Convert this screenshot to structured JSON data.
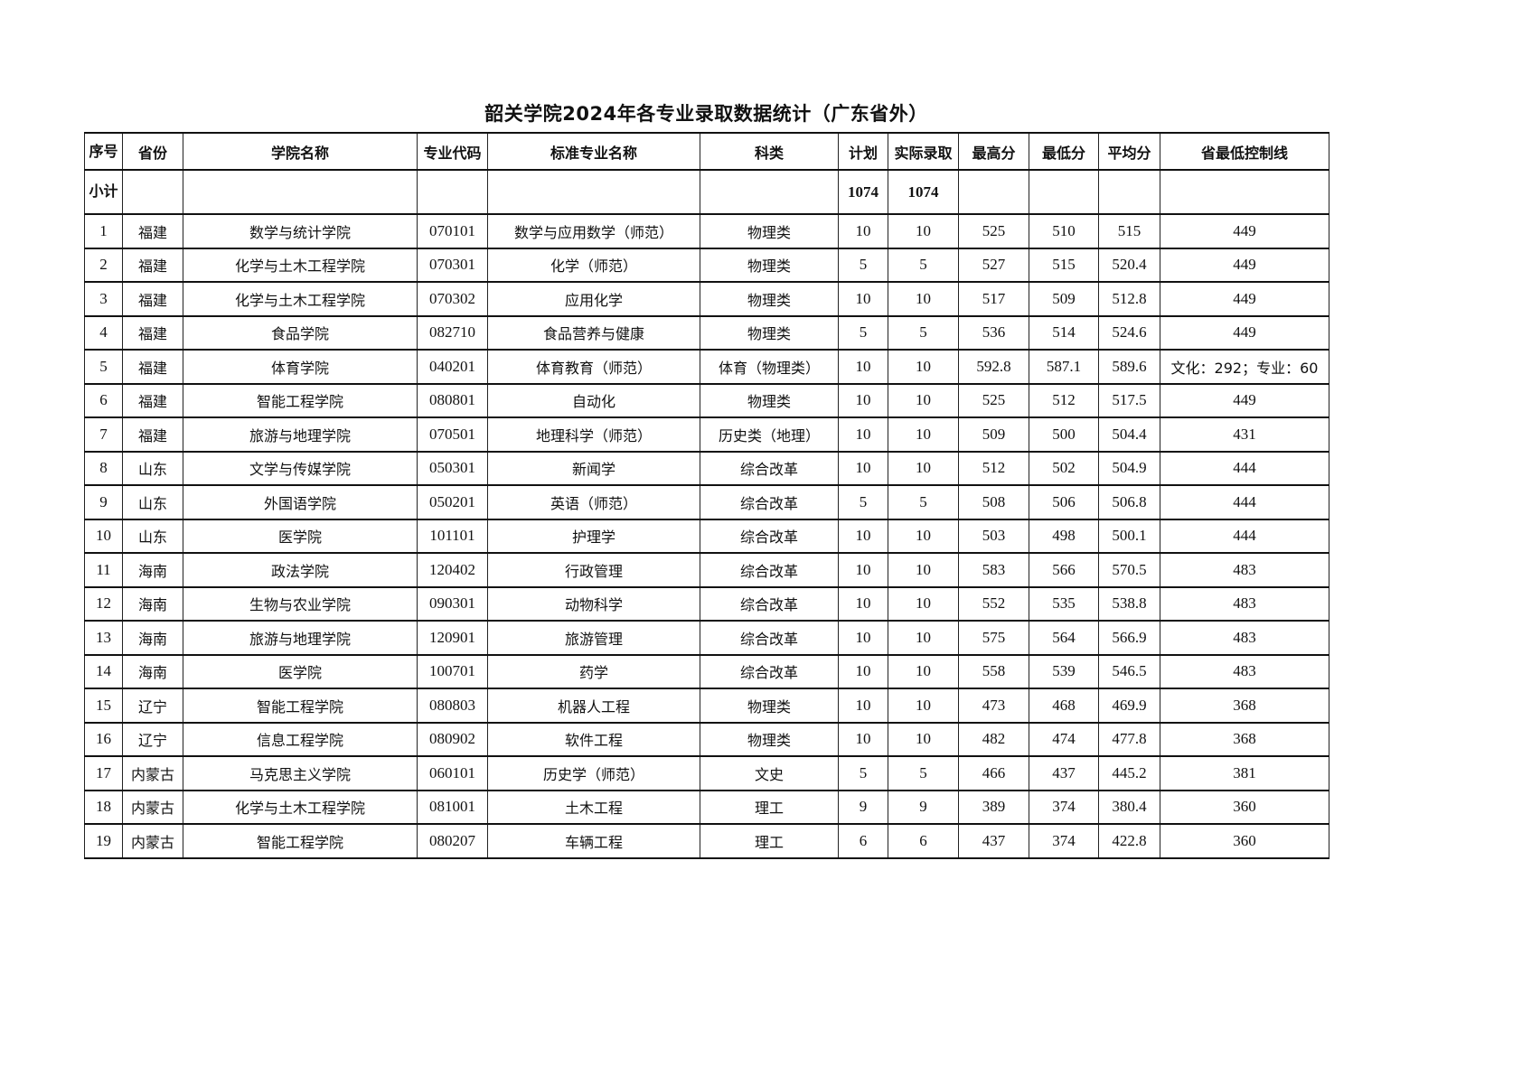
{
  "title": "韶关学院2024年各专业录取数据统计（广东省外）",
  "headers": [
    "序号",
    "省份",
    "学院名称",
    "专业代码",
    "标准专业名称",
    "科类",
    "计划",
    "实际录取",
    "最高分",
    "最低分",
    "平均分",
    "省最低控制线"
  ],
  "subtotal": {
    "label": "小计",
    "plan": "1074",
    "admitted": "1074"
  },
  "rows": [
    [
      "1",
      "福建",
      "数学与统计学院",
      "070101",
      "数学与应用数学（师范）",
      "物理类",
      "10",
      "10",
      "525",
      "510",
      "515",
      "449"
    ],
    [
      "2",
      "福建",
      "化学与土木工程学院",
      "070301",
      "化学（师范）",
      "物理类",
      "5",
      "5",
      "527",
      "515",
      "520.4",
      "449"
    ],
    [
      "3",
      "福建",
      "化学与土木工程学院",
      "070302",
      "应用化学",
      "物理类",
      "10",
      "10",
      "517",
      "509",
      "512.8",
      "449"
    ],
    [
      "4",
      "福建",
      "食品学院",
      "082710",
      "食品营养与健康",
      "物理类",
      "5",
      "5",
      "536",
      "514",
      "524.6",
      "449"
    ],
    [
      "5",
      "福建",
      "体育学院",
      "040201",
      "体育教育（师范）",
      "体育（物理类）",
      "10",
      "10",
      "592.8",
      "587.1",
      "589.6",
      "文化：292；专业：60"
    ],
    [
      "6",
      "福建",
      "智能工程学院",
      "080801",
      "自动化",
      "物理类",
      "10",
      "10",
      "525",
      "512",
      "517.5",
      "449"
    ],
    [
      "7",
      "福建",
      "旅游与地理学院",
      "070501",
      "地理科学（师范）",
      "历史类（地理）",
      "10",
      "10",
      "509",
      "500",
      "504.4",
      "431"
    ],
    [
      "8",
      "山东",
      "文学与传媒学院",
      "050301",
      "新闻学",
      "综合改革",
      "10",
      "10",
      "512",
      "502",
      "504.9",
      "444"
    ],
    [
      "9",
      "山东",
      "外国语学院",
      "050201",
      "英语（师范）",
      "综合改革",
      "5",
      "5",
      "508",
      "506",
      "506.8",
      "444"
    ],
    [
      "10",
      "山东",
      "医学院",
      "101101",
      "护理学",
      "综合改革",
      "10",
      "10",
      "503",
      "498",
      "500.1",
      "444"
    ],
    [
      "11",
      "海南",
      "政法学院",
      "120402",
      "行政管理",
      "综合改革",
      "10",
      "10",
      "583",
      "566",
      "570.5",
      "483"
    ],
    [
      "12",
      "海南",
      "生物与农业学院",
      "090301",
      "动物科学",
      "综合改革",
      "10",
      "10",
      "552",
      "535",
      "538.8",
      "483"
    ],
    [
      "13",
      "海南",
      "旅游与地理学院",
      "120901",
      "旅游管理",
      "综合改革",
      "10",
      "10",
      "575",
      "564",
      "566.9",
      "483"
    ],
    [
      "14",
      "海南",
      "医学院",
      "100701",
      "药学",
      "综合改革",
      "10",
      "10",
      "558",
      "539",
      "546.5",
      "483"
    ],
    [
      "15",
      "辽宁",
      "智能工程学院",
      "080803",
      "机器人工程",
      "物理类",
      "10",
      "10",
      "473",
      "468",
      "469.9",
      "368"
    ],
    [
      "16",
      "辽宁",
      "信息工程学院",
      "080902",
      "软件工程",
      "物理类",
      "10",
      "10",
      "482",
      "474",
      "477.8",
      "368"
    ],
    [
      "17",
      "内蒙古",
      "马克思主义学院",
      "060101",
      "历史学（师范）",
      "文史",
      "5",
      "5",
      "466",
      "437",
      "445.2",
      "381"
    ],
    [
      "18",
      "内蒙古",
      "化学与土木工程学院",
      "081001",
      "土木工程",
      "理工",
      "9",
      "9",
      "389",
      "374",
      "380.4",
      "360"
    ],
    [
      "19",
      "内蒙古",
      "智能工程学院",
      "080207",
      "车辆工程",
      "理工",
      "6",
      "6",
      "437",
      "374",
      "422.8",
      "360"
    ]
  ]
}
